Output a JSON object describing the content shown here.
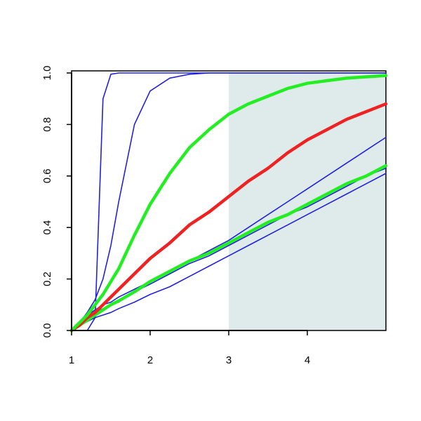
{
  "chart_data": {
    "type": "line",
    "x": [
      1,
      1.1,
      1.2,
      1.3,
      1.4,
      1.5,
      1.6,
      1.8,
      2,
      2.25,
      2.5,
      2.75,
      3,
      3.25,
      3.5,
      3.75,
      4,
      4.25,
      4.5,
      4.75,
      5
    ],
    "series": [
      {
        "color": "#2222dd",
        "values": [
          0,
          0,
          0,
          0.05,
          0.9,
          0.995,
          1,
          1,
          1,
          1,
          1,
          1,
          1,
          1,
          1,
          1,
          1,
          1,
          1,
          1,
          1
        ]
      },
      {
        "color": "#2222dd",
        "values": [
          0,
          0.03,
          0.07,
          0.12,
          0.2,
          0.33,
          0.5,
          0.8,
          0.93,
          0.98,
          0.995,
          1,
          1,
          1,
          1,
          1,
          1,
          1,
          1,
          1,
          1
        ]
      },
      {
        "color": "#2222dd",
        "values": [
          0,
          0.03,
          0.06,
          0.08,
          0.1,
          0.11,
          0.13,
          0.16,
          0.19,
          0.23,
          0.27,
          0.31,
          0.35,
          0.4,
          0.45,
          0.5,
          0.55,
          0.6,
          0.65,
          0.7,
          0.75
        ]
      },
      {
        "color": "#2222dd",
        "values": [
          0,
          0.025,
          0.05,
          0.07,
          0.085,
          0.1,
          0.11,
          0.15,
          0.18,
          0.22,
          0.26,
          0.29,
          0.33,
          0.37,
          0.41,
          0.45,
          0.48,
          0.52,
          0.56,
          0.6,
          0.63
        ]
      },
      {
        "color": "#2222dd",
        "values": [
          0,
          0.02,
          0.035,
          0.05,
          0.06,
          0.07,
          0.085,
          0.11,
          0.14,
          0.17,
          0.21,
          0.25,
          0.29,
          0.33,
          0.37,
          0.41,
          0.45,
          0.49,
          0.53,
          0.57,
          0.61
        ]
      },
      {
        "color": "#22ee22",
        "values": [
          0,
          0.02,
          0.04,
          0.06,
          0.08,
          0.1,
          0.115,
          0.15,
          0.19,
          0.23,
          0.27,
          0.3,
          0.34,
          0.38,
          0.42,
          0.45,
          0.49,
          0.53,
          0.57,
          0.6,
          0.64
        ]
      },
      {
        "color": "#ee2222",
        "values": [
          0,
          0.02,
          0.05,
          0.07,
          0.1,
          0.13,
          0.16,
          0.22,
          0.28,
          0.34,
          0.41,
          0.46,
          0.52,
          0.58,
          0.63,
          0.69,
          0.74,
          0.78,
          0.82,
          0.85,
          0.88
        ]
      },
      {
        "color": "#22ee22",
        "values": [
          0,
          0.03,
          0.06,
          0.1,
          0.14,
          0.19,
          0.24,
          0.37,
          0.49,
          0.61,
          0.71,
          0.78,
          0.84,
          0.88,
          0.91,
          0.94,
          0.96,
          0.97,
          0.98,
          0.985,
          0.99
        ]
      }
    ],
    "shaded_region": [
      3,
      5
    ],
    "shade_color": "#deebea",
    "xlim": [
      1,
      5
    ],
    "xticks": [
      1,
      2,
      3,
      4
    ],
    "ylim": [
      0,
      1
    ],
    "yticks": [
      {
        "value": 0,
        "label": "0.0"
      },
      0.2,
      0.4,
      0.6,
      0.8,
      {
        "value": 1,
        "label": "1.0"
      }
    ]
  }
}
